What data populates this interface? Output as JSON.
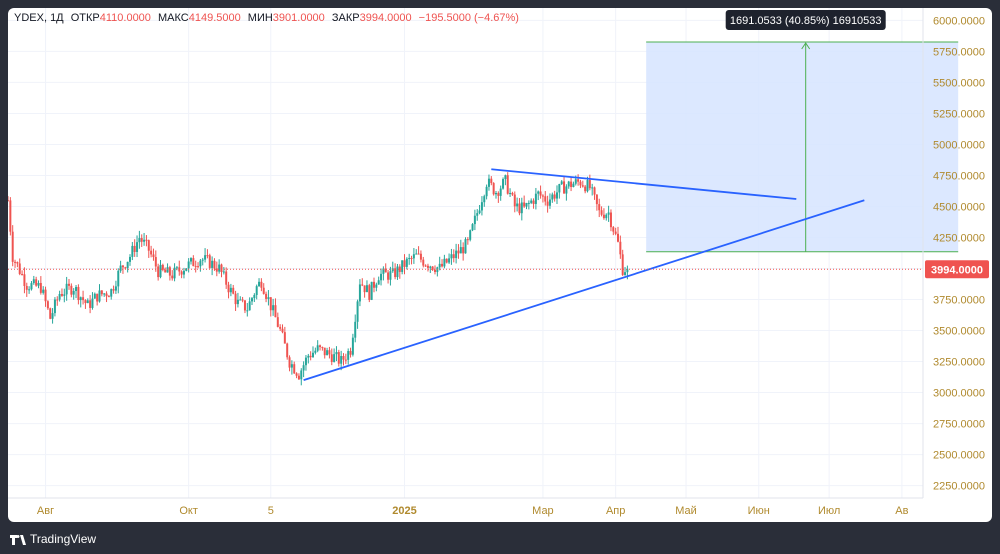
{
  "legend": {
    "symbol": "YDEX, 1Д",
    "open_label": "ОТКР",
    "open": "4110.0000",
    "high_label": "МАКС",
    "high": "4149.5000",
    "low_label": "МИН",
    "low": "3901.0000",
    "close_label": "ЗАКР",
    "close": "3994.0000",
    "change": "−195.5000 (−4.67%)"
  },
  "measure_label": "1691.0533 (40.85%) 16910533",
  "last_price_label": "3994.0000",
  "brand": "TradingView",
  "colors": {
    "up": "#26a69a",
    "down": "#ef5350",
    "trend": "#2962ff",
    "measure_fill": "#d6e4ff",
    "measure_line": "#4caf50",
    "axis_text": "#b08a2e"
  },
  "chart_data": {
    "type": "candlestick",
    "ylim": [
      2150,
      6100
    ],
    "y_ticks": [
      2250,
      2500,
      2750,
      3000,
      3250,
      3500,
      3750,
      4000,
      4250,
      4500,
      4750,
      5000,
      5250,
      5500,
      5750,
      6000
    ],
    "y_tick_labels": [
      "2250.0000",
      "2500.0000",
      "2750.0000",
      "3000.0000",
      "3250.0000",
      "3500.0000",
      "3750.0000",
      "4000.0000",
      "4250.0000",
      "4500.0000",
      "4750.0000",
      "5000.0000",
      "5250.0000",
      "5500.0000",
      "5750.0000",
      "6000.0000"
    ],
    "x_labels": [
      {
        "label": "Авг",
        "day": 16
      },
      {
        "label": "Окт",
        "day": 77
      },
      {
        "label": "5",
        "day": 112
      },
      {
        "label": "2025",
        "day": 169
      },
      {
        "label": "Мар",
        "day": 228
      },
      {
        "label": "Апр",
        "day": 259
      },
      {
        "label": "Май",
        "day": 289
      },
      {
        "label": "Июн",
        "day": 320
      },
      {
        "label": "Июл",
        "day": 350
      },
      {
        "label": "Ав",
        "day": 381
      }
    ],
    "x_range_days": [
      0,
      390
    ],
    "price_path": [
      [
        0,
        4550
      ],
      [
        2,
        4100
      ],
      [
        8,
        3870
      ],
      [
        14,
        3850
      ],
      [
        18,
        3600
      ],
      [
        22,
        3800
      ],
      [
        28,
        3850
      ],
      [
        34,
        3700
      ],
      [
        38,
        3780
      ],
      [
        44,
        3820
      ],
      [
        48,
        4000
      ],
      [
        52,
        4100
      ],
      [
        56,
        4250
      ],
      [
        60,
        4150
      ],
      [
        64,
        3980
      ],
      [
        70,
        3950
      ],
      [
        76,
        4020
      ],
      [
        82,
        4080
      ],
      [
        86,
        4050
      ],
      [
        90,
        4000
      ],
      [
        94,
        3850
      ],
      [
        98,
        3720
      ],
      [
        102,
        3680
      ],
      [
        106,
        3850
      ],
      [
        108,
        3900
      ],
      [
        112,
        3700
      ],
      [
        116,
        3500
      ],
      [
        120,
        3250
      ],
      [
        124,
        3150
      ],
      [
        128,
        3300
      ],
      [
        132,
        3350
      ],
      [
        138,
        3300
      ],
      [
        142,
        3250
      ],
      [
        146,
        3350
      ],
      [
        150,
        3900
      ],
      [
        154,
        3800
      ],
      [
        158,
        3950
      ],
      [
        164,
        3950
      ],
      [
        170,
        4050
      ],
      [
        174,
        4100
      ],
      [
        178,
        4050
      ],
      [
        184,
        4000
      ],
      [
        190,
        4100
      ],
      [
        196,
        4200
      ],
      [
        200,
        4450
      ],
      [
        204,
        4700
      ],
      [
        208,
        4620
      ],
      [
        212,
        4700
      ],
      [
        216,
        4500
      ],
      [
        220,
        4480
      ],
      [
        226,
        4600
      ],
      [
        230,
        4550
      ],
      [
        236,
        4650
      ],
      [
        240,
        4680
      ],
      [
        244,
        4700
      ],
      [
        248,
        4650
      ],
      [
        252,
        4450
      ],
      [
        256,
        4450
      ],
      [
        260,
        4200
      ],
      [
        262,
        4000
      ],
      [
        264,
        3994
      ]
    ],
    "trendlines": [
      {
        "from": [
          126,
          3100
        ],
        "to": [
          365,
          4550
        ]
      },
      {
        "from": [
          206,
          4800
        ],
        "to": [
          336,
          4560
        ]
      }
    ],
    "measure": {
      "from_day": 272,
      "to_day": 405,
      "low": 4135,
      "high": 5826,
      "arrow_day": 340
    },
    "last_price": 3994
  }
}
